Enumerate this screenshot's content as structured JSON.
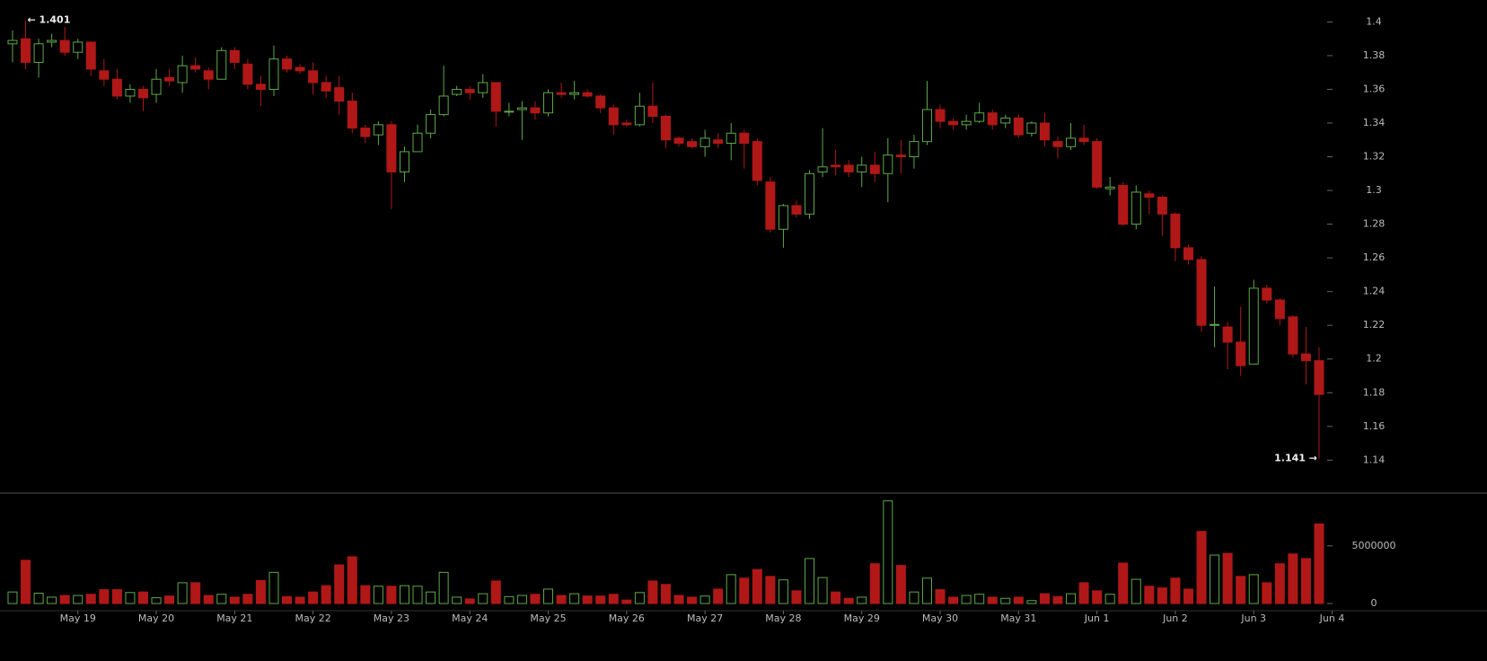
{
  "chart_data": {
    "type": "candlestick",
    "up_color": "#5fa84a",
    "down_color": "#b01818",
    "open": [
      1.387,
      1.39,
      1.376,
      1.388,
      1.389,
      1.382,
      1.388,
      1.371,
      1.366,
      1.356,
      1.36,
      1.357,
      1.367,
      1.364,
      1.374,
      1.371,
      1.366,
      1.383,
      1.375,
      1.363,
      1.36,
      1.378,
      1.373,
      1.371,
      1.364,
      1.361,
      1.353,
      1.337,
      1.333,
      1.339,
      1.311,
      1.323,
      1.334,
      1.345,
      1.357,
      1.36,
      1.358,
      1.364,
      1.347,
      1.348,
      1.349,
      1.346,
      1.358,
      1.357,
      1.358,
      1.356,
      1.349,
      1.34,
      1.339,
      1.35,
      1.344,
      1.331,
      1.329,
      1.326,
      1.33,
      1.328,
      1.334,
      1.329,
      1.305,
      1.277,
      1.291,
      1.286,
      1.311,
      1.315,
      1.315,
      1.311,
      1.315,
      1.31,
      1.321,
      1.32,
      1.329,
      1.348,
      1.341,
      1.339,
      1.341,
      1.346,
      1.34,
      1.343,
      1.334,
      1.34,
      1.329,
      1.326,
      1.331,
      1.329,
      1.301,
      1.303,
      1.28,
      1.298,
      1.296,
      1.286,
      1.266,
      1.259,
      1.22,
      1.219,
      1.21,
      1.197,
      1.242,
      1.235,
      1.225,
      1.203,
      1.199
    ],
    "high": [
      1.395,
      1.401,
      1.39,
      1.393,
      1.397,
      1.39,
      1.388,
      1.378,
      1.372,
      1.363,
      1.362,
      1.372,
      1.372,
      1.38,
      1.379,
      1.373,
      1.385,
      1.385,
      1.378,
      1.368,
      1.386,
      1.38,
      1.375,
      1.376,
      1.368,
      1.368,
      1.358,
      1.339,
      1.341,
      1.341,
      1.326,
      1.339,
      1.348,
      1.374,
      1.362,
      1.362,
      1.369,
      1.364,
      1.352,
      1.353,
      1.353,
      1.36,
      1.364,
      1.365,
      1.36,
      1.357,
      1.351,
      1.342,
      1.358,
      1.364,
      1.345,
      1.332,
      1.331,
      1.336,
      1.334,
      1.34,
      1.336,
      1.331,
      1.308,
      1.292,
      1.294,
      1.312,
      1.337,
      1.324,
      1.318,
      1.32,
      1.323,
      1.331,
      1.33,
      1.333,
      1.365,
      1.351,
      1.343,
      1.345,
      1.352,
      1.348,
      1.345,
      1.345,
      1.341,
      1.346,
      1.332,
      1.34,
      1.339,
      1.331,
      1.308,
      1.305,
      1.303,
      1.3,
      1.297,
      1.287,
      1.268,
      1.261,
      1.243,
      1.222,
      1.231,
      1.247,
      1.244,
      1.236,
      1.226,
      1.219,
      1.207
    ],
    "low": [
      1.376,
      1.372,
      1.367,
      1.385,
      1.38,
      1.378,
      1.368,
      1.362,
      1.354,
      1.352,
      1.347,
      1.352,
      1.362,
      1.358,
      1.37,
      1.36,
      1.366,
      1.372,
      1.36,
      1.35,
      1.356,
      1.37,
      1.369,
      1.357,
      1.355,
      1.345,
      1.334,
      1.328,
      1.327,
      1.289,
      1.305,
      1.323,
      1.331,
      1.344,
      1.356,
      1.354,
      1.355,
      1.338,
      1.344,
      1.33,
      1.342,
      1.344,
      1.355,
      1.354,
      1.355,
      1.346,
      1.333,
      1.338,
      1.338,
      1.34,
      1.325,
      1.326,
      1.325,
      1.32,
      1.325,
      1.318,
      1.313,
      1.303,
      1.275,
      1.266,
      1.284,
      1.283,
      1.308,
      1.309,
      1.308,
      1.302,
      1.305,
      1.293,
      1.31,
      1.313,
      1.327,
      1.337,
      1.336,
      1.336,
      1.34,
      1.336,
      1.337,
      1.331,
      1.332,
      1.326,
      1.319,
      1.324,
      1.327,
      1.301,
      1.297,
      1.279,
      1.277,
      1.286,
      1.273,
      1.258,
      1.256,
      1.216,
      1.207,
      1.194,
      1.19,
      1.197,
      1.233,
      1.22,
      1.201,
      1.185,
      1.141
    ],
    "close": [
      1.389,
      1.376,
      1.387,
      1.389,
      1.382,
      1.388,
      1.372,
      1.366,
      1.356,
      1.36,
      1.355,
      1.366,
      1.365,
      1.374,
      1.372,
      1.366,
      1.383,
      1.376,
      1.363,
      1.36,
      1.378,
      1.372,
      1.371,
      1.364,
      1.359,
      1.353,
      1.337,
      1.332,
      1.339,
      1.311,
      1.323,
      1.334,
      1.345,
      1.356,
      1.36,
      1.358,
      1.364,
      1.347,
      1.347,
      1.349,
      1.346,
      1.358,
      1.357,
      1.358,
      1.356,
      1.349,
      1.339,
      1.339,
      1.35,
      1.344,
      1.33,
      1.328,
      1.326,
      1.331,
      1.328,
      1.334,
      1.328,
      1.306,
      1.277,
      1.291,
      1.286,
      1.31,
      1.314,
      1.314,
      1.311,
      1.315,
      1.31,
      1.321,
      1.32,
      1.329,
      1.348,
      1.341,
      1.339,
      1.341,
      1.346,
      1.339,
      1.343,
      1.333,
      1.34,
      1.33,
      1.326,
      1.331,
      1.329,
      1.302,
      1.302,
      1.28,
      1.299,
      1.296,
      1.286,
      1.266,
      1.259,
      1.22,
      1.2205,
      1.21,
      1.196,
      1.242,
      1.235,
      1.224,
      1.203,
      1.199,
      1.179
    ],
    "volume": [
      1000000,
      3750000,
      900000,
      550000,
      700000,
      700000,
      800000,
      1200000,
      1200000,
      950000,
      1000000,
      500000,
      650000,
      1800000,
      1800000,
      700000,
      800000,
      550000,
      800000,
      2000000,
      2700000,
      600000,
      550000,
      1000000,
      1550000,
      3350000,
      4050000,
      1550000,
      1500000,
      1500000,
      1550000,
      1500000,
      1000000,
      2700000,
      550000,
      400000,
      850000,
      1950000,
      600000,
      700000,
      800000,
      1250000,
      700000,
      850000,
      650000,
      650000,
      800000,
      300000,
      950000,
      1950000,
      1650000,
      700000,
      550000,
      650000,
      1250000,
      2500000,
      2200000,
      2950000,
      2350000,
      2050000,
      1100000,
      3900000,
      2250000,
      1000000,
      450000,
      550000,
      3450000,
      8900000,
      3300000,
      1000000,
      2200000,
      1200000,
      550000,
      700000,
      800000,
      550000,
      450000,
      550000,
      250000,
      850000,
      600000,
      850000,
      1800000,
      1100000,
      800000,
      3500000,
      2100000,
      1500000,
      1350000,
      2200000,
      1250000,
      6250000,
      4200000,
      4350000,
      2350000,
      2500000,
      1800000,
      3450000,
      4300000,
      3900000,
      6900000
    ],
    "ylim": [
      1.121,
      1.413
    ],
    "yticks": [
      1.14,
      1.16,
      1.18,
      1.2,
      1.22,
      1.24,
      1.26,
      1.28,
      1.3,
      1.32,
      1.34,
      1.36,
      1.38,
      1.4
    ],
    "volume_ylim": [
      0,
      9500000
    ],
    "volume_ticks": [
      0,
      5000000
    ],
    "xlim": [
      -0.5,
      101.5
    ],
    "xticks": [
      {
        "value": 5,
        "label": "May 19"
      },
      {
        "value": 11,
        "label": "May 20"
      },
      {
        "value": 17,
        "label": "May 21"
      },
      {
        "value": 23,
        "label": "May 22"
      },
      {
        "value": 29,
        "label": "May 23"
      },
      {
        "value": 35,
        "label": "May 24"
      },
      {
        "value": 41,
        "label": "May 25"
      },
      {
        "value": 47,
        "label": "May 26"
      },
      {
        "value": 53,
        "label": "May 27"
      },
      {
        "value": 59,
        "label": "May 28"
      },
      {
        "value": 65,
        "label": "May 29"
      },
      {
        "value": 71,
        "label": "May 30"
      },
      {
        "value": 77,
        "label": "May 31"
      },
      {
        "value": 83,
        "label": "Jun 1"
      },
      {
        "value": 89,
        "label": "Jun 2"
      },
      {
        "value": 95,
        "label": "Jun 3"
      },
      {
        "value": 101,
        "label": "Jun 4"
      }
    ],
    "annotations": [
      {
        "label": "← 1.401",
        "value": 1.401,
        "index": 1,
        "side": "right"
      },
      {
        "label": "1.141 →",
        "value": 1.141,
        "index": 100,
        "side": "left"
      }
    ]
  }
}
